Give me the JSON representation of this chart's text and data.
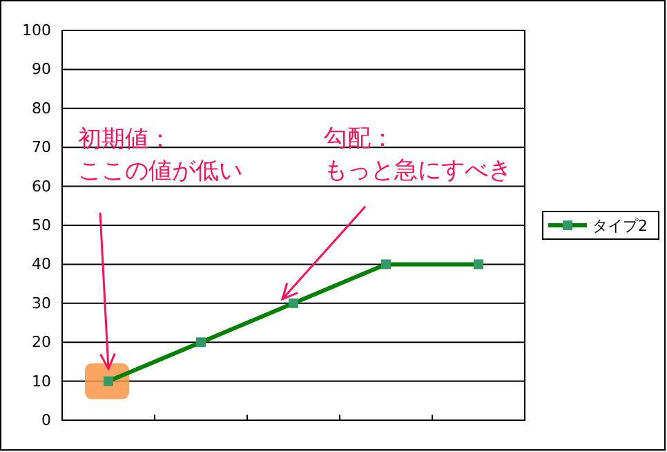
{
  "chart_data": {
    "type": "line",
    "categories": [
      null,
      null,
      null,
      null,
      null
    ],
    "series": [
      {
        "name": "タイプ2",
        "color": "#008000",
        "values": [
          10,
          20,
          30,
          40,
          40
        ]
      }
    ],
    "ylim": [
      0,
      100
    ],
    "yticks": [
      0,
      10,
      20,
      30,
      40,
      50,
      60,
      70,
      80,
      90,
      100
    ],
    "grid": "y",
    "legend": "right",
    "marker": "square",
    "line_style": "solid",
    "annotations": [
      "初期値：",
      "ここの値が低い",
      "勾配：",
      "もっと急にすべき"
    ]
  }
}
